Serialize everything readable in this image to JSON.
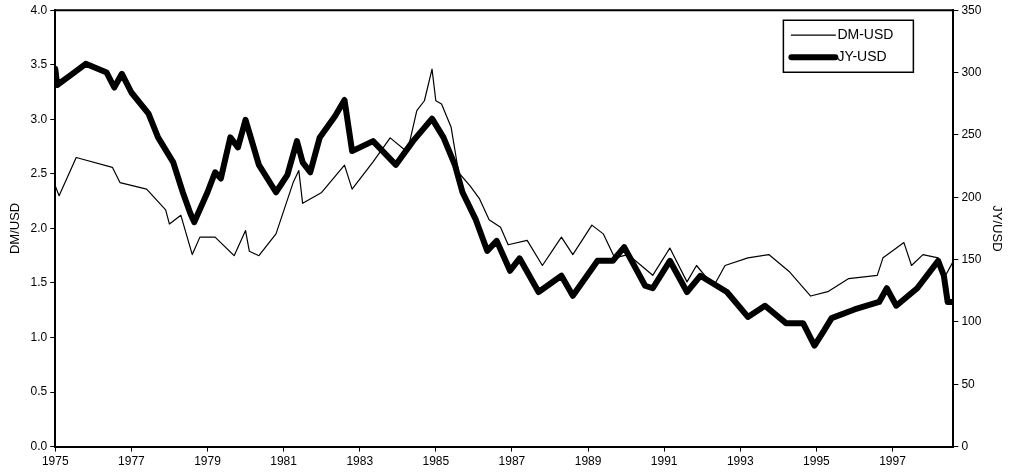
{
  "chart_data": {
    "type": "line",
    "xlabel": null,
    "ylabel": "DM/USD",
    "y2label": "JY/USD",
    "xlim": [
      1975,
      1998.6
    ],
    "xticks": [
      1975,
      1977,
      1979,
      1981,
      1983,
      1985,
      1987,
      1989,
      1991,
      1993,
      1995,
      1997
    ],
    "ylim": [
      0,
      4
    ],
    "yticks": [
      {
        "value": 0,
        "label": "0.0"
      },
      0.5,
      {
        "value": 1,
        "label": "1.0"
      },
      1.5,
      {
        "value": 2,
        "label": "2.0"
      },
      2.5,
      {
        "value": 3,
        "label": "3.0"
      },
      3.5,
      {
        "value": 4,
        "label": "4.0"
      }
    ],
    "y2lim": [
      0,
      350
    ],
    "y2ticks": [
      0,
      50,
      100,
      150,
      200,
      250,
      300,
      350
    ],
    "grid": false,
    "legend": "top right",
    "marker": "none",
    "line_style": "solid",
    "series": [
      {
        "name": "DM-USD",
        "color": "#000000",
        "x": [
          1975.0,
          1975.1,
          1975.55,
          1976.5,
          1976.7,
          1977.4,
          1977.9,
          1978.0,
          1978.3,
          1978.6,
          1978.8,
          1979.2,
          1979.7,
          1980.0,
          1980.1,
          1980.35,
          1980.8,
          1981.25,
          1981.4,
          1981.5,
          1982.0,
          1982.6,
          1982.8,
          1983.35,
          1983.8,
          1984.25,
          1984.5,
          1984.7,
          1984.9,
          1985.0,
          1985.15,
          1985.4,
          1985.6,
          1985.9,
          1986.15,
          1986.4,
          1986.7,
          1986.9,
          1987.4,
          1987.8,
          1988.3,
          1988.6,
          1989.1,
          1989.4,
          1989.7,
          1990.05,
          1990.7,
          1991.15,
          1991.6,
          1991.85,
          1992.3,
          1992.6,
          1993.2,
          1993.75,
          1994.3,
          1994.85,
          1995.3,
          1995.85,
          1996.6,
          1996.75,
          1997.3,
          1997.5,
          1997.8,
          1998.2,
          1998.35,
          1998.6
        ],
        "values": [
          2.39,
          2.3,
          2.65,
          2.56,
          2.42,
          2.36,
          2.17,
          2.04,
          2.12,
          1.76,
          1.92,
          1.92,
          1.75,
          1.98,
          1.79,
          1.75,
          1.95,
          2.42,
          2.53,
          2.23,
          2.33,
          2.58,
          2.36,
          2.61,
          2.83,
          2.7,
          3.08,
          3.17,
          3.46,
          3.17,
          3.14,
          2.93,
          2.51,
          2.39,
          2.27,
          2.08,
          2.01,
          1.85,
          1.89,
          1.66,
          1.92,
          1.76,
          2.03,
          1.95,
          1.73,
          1.76,
          1.57,
          1.82,
          1.51,
          1.66,
          1.47,
          1.66,
          1.73,
          1.76,
          1.6,
          1.38,
          1.42,
          1.54,
          1.57,
          1.73,
          1.87,
          1.66,
          1.76,
          1.73,
          1.54,
          1.7
        ]
      },
      {
        "name": "JY-USD",
        "color": "#000000",
        "axis": "y2",
        "x": [
          1975.0,
          1975.05,
          1975.45,
          1975.8,
          1976.35,
          1976.55,
          1976.75,
          1977.0,
          1977.45,
          1977.7,
          1978.1,
          1978.35,
          1978.55,
          1978.65,
          1979.0,
          1979.2,
          1979.35,
          1979.6,
          1979.8,
          1980.0,
          1980.35,
          1980.8,
          1981.1,
          1981.35,
          1981.5,
          1981.7,
          1981.95,
          1982.35,
          1982.6,
          1982.8,
          1983.35,
          1983.95,
          1984.4,
          1984.9,
          1985.2,
          1985.5,
          1985.7,
          1986.05,
          1986.35,
          1986.6,
          1986.95,
          1987.2,
          1987.7,
          1988.3,
          1988.6,
          1989.25,
          1989.65,
          1989.95,
          1990.5,
          1990.7,
          1991.15,
          1991.6,
          1991.95,
          1992.65,
          1993.2,
          1993.65,
          1994.2,
          1994.65,
          1994.95,
          1995.2,
          1995.4,
          1996.0,
          1996.65,
          1996.85,
          1997.1,
          1997.65,
          1998.2,
          1998.35,
          1998.45,
          1998.6
        ],
        "values": [
          303,
          290,
          299,
          307,
          300,
          288,
          299,
          284,
          267,
          248,
          228,
          204,
          187,
          180,
          204,
          220,
          215,
          248,
          240,
          262,
          226,
          204,
          218,
          245,
          228,
          220,
          248,
          265,
          278,
          237,
          245,
          226,
          245,
          263,
          248,
          226,
          204,
          182,
          157,
          165,
          141,
          151,
          124,
          137,
          121,
          149,
          149,
          160,
          129,
          127,
          149,
          124,
          137,
          124,
          104,
          113,
          99,
          99,
          81,
          93,
          103,
          110,
          116,
          127,
          113,
          127,
          149,
          137,
          116,
          116
        ]
      }
    ]
  }
}
